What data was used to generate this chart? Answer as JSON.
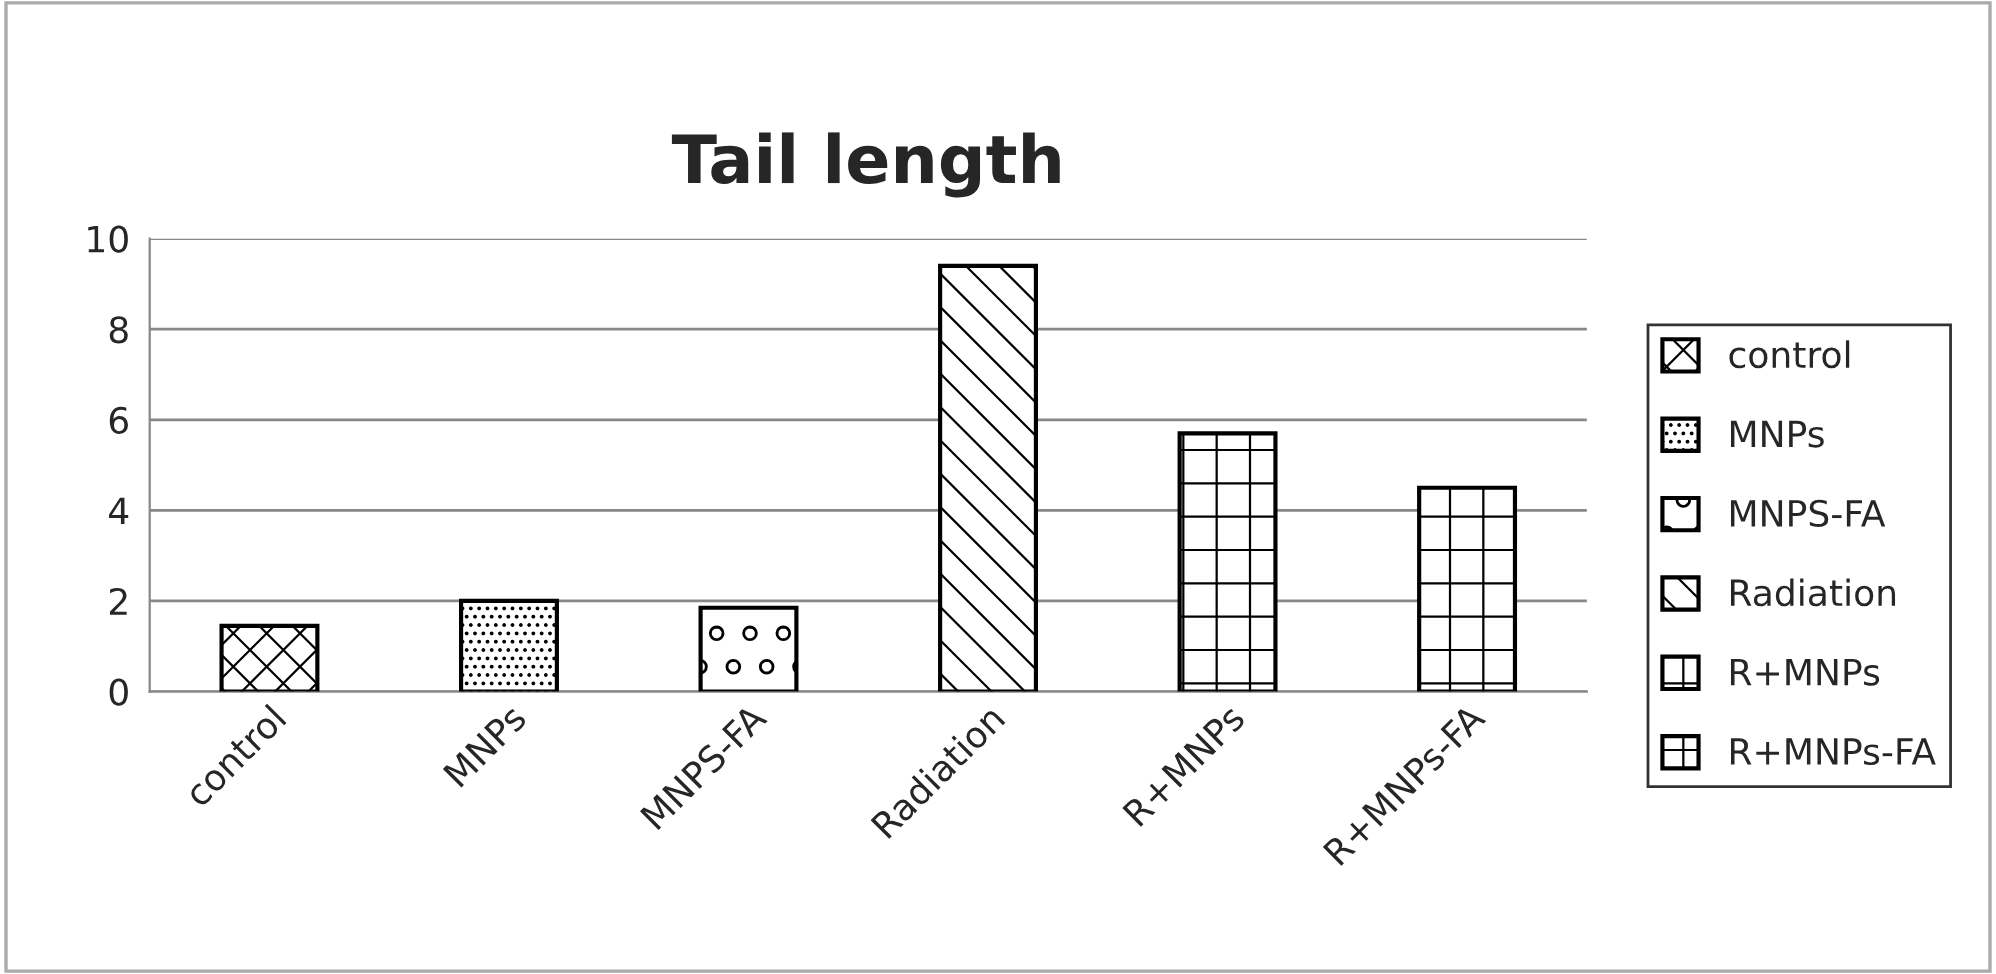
{
  "chart_data": {
    "type": "bar",
    "title": "Tail length",
    "categories": [
      "control",
      "MNPs",
      "MNPS-FA",
      "Radiation",
      "R+MNPs",
      "R+MNPs-FA"
    ],
    "series": [
      {
        "name": "control",
        "color": "#000000",
        "values": [
          1.45,
          null,
          null,
          null,
          null,
          null
        ]
      },
      {
        "name": "MNPs",
        "color": "#000000",
        "values": [
          null,
          2.0,
          null,
          null,
          null,
          null
        ]
      },
      {
        "name": "MNPS-FA",
        "color": "#000000",
        "values": [
          null,
          null,
          1.85,
          null,
          null,
          null
        ]
      },
      {
        "name": "Radiation",
        "color": "#000000",
        "values": [
          null,
          null,
          null,
          9.4,
          null,
          null
        ]
      },
      {
        "name": "R+MNPs",
        "color": "#000000",
        "values": [
          null,
          null,
          null,
          null,
          5.7,
          null
        ]
      },
      {
        "name": "R+MNPs-FA",
        "color": "#000000",
        "values": [
          null,
          null,
          null,
          null,
          null,
          4.5
        ]
      }
    ],
    "ylim": [
      0,
      10
    ],
    "yticks": [
      0,
      2,
      4,
      6,
      8,
      10
    ],
    "grid": "y",
    "legend": "right"
  }
}
